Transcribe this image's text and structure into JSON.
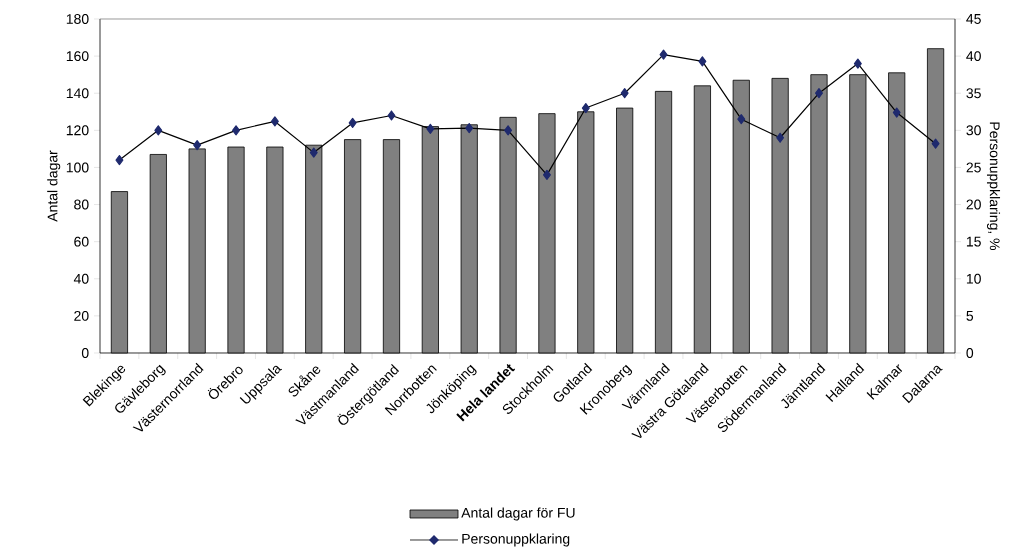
{
  "chart_data": {
    "type": "bar",
    "categories": [
      "Blekinge",
      "Gävleborg",
      "Västernorrland",
      "Örebro",
      "Uppsala",
      "Skåne",
      "Västmanland",
      "Östergötland",
      "Norrbotten",
      "Jönköping",
      "**Hela landet**",
      "Stockholm",
      "Gotland",
      "Kronoberg",
      "Värmland",
      "Västra Götaland",
      "Västerbotten",
      "Södermanland",
      "Jämtland",
      "Halland",
      "Kalmar",
      "Dalarna"
    ],
    "ylabel": "Antal dagar",
    "y2label": "Personuppklaring, %",
    "ylim": [
      0,
      180
    ],
    "yticks": [
      0,
      20,
      40,
      60,
      80,
      100,
      120,
      140,
      160,
      180
    ],
    "y2lim": [
      0,
      45
    ],
    "y2ticks": [
      0,
      5,
      10,
      15,
      20,
      25,
      30,
      35,
      40,
      45
    ],
    "legend": "bottom",
    "marker": "diamond",
    "series": [
      {
        "name": "Antal dagar för FU",
        "color": "#808080",
        "values": [
          87,
          107,
          110,
          111,
          111,
          112,
          115,
          115,
          122,
          123,
          127,
          129,
          130,
          132,
          141,
          144,
          147,
          148,
          150,
          150,
          151,
          164
        ]
      },
      {
        "name": "Personuppklaring",
        "type": "line",
        "axis": "y2",
        "color": "#1f2a6e",
        "values": [
          26,
          30,
          28,
          30,
          31.2,
          27,
          31,
          32,
          30.2,
          30.3,
          30,
          24,
          33,
          35,
          40.2,
          39.3,
          31.5,
          29,
          35,
          39,
          32.4,
          28.2
        ]
      }
    ]
  }
}
